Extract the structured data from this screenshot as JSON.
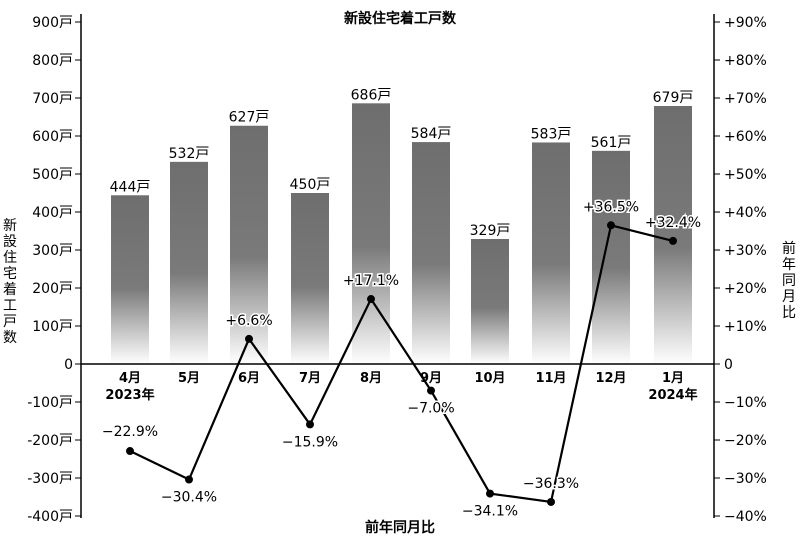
{
  "chart_data": {
    "type": "bar",
    "title": "新設住宅着工戸数",
    "xlabel": "前年同月比",
    "ylabel": "新設住宅着工戸数",
    "ylabel_right": "前年同月比",
    "categories": [
      "4月",
      "5月",
      "6月",
      "7月",
      "8月",
      "9月",
      "10月",
      "11月",
      "12月",
      "1月"
    ],
    "year_labels": [
      "2023年",
      "",
      "",
      "",
      "",
      "",
      "",
      "",
      "",
      "2024年"
    ],
    "series": [
      {
        "type": "bar",
        "axis": "left",
        "values": [
          444,
          532,
          627,
          450,
          686,
          584,
          329,
          583,
          561,
          679
        ],
        "labels": [
          "444戸",
          "532戸",
          "627戸",
          "450戸",
          "686戸",
          "584戸",
          "329戸",
          "583戸",
          "561戸",
          "679戸"
        ]
      },
      {
        "type": "line",
        "axis": "right",
        "values": [
          -22.9,
          -30.4,
          6.6,
          -15.9,
          17.1,
          -7.0,
          -34.1,
          -36.3,
          36.5,
          32.4
        ],
        "labels": [
          "−22.9%",
          "−30.4%",
          "+6.6%",
          "−15.9%",
          "+17.1%",
          "−7.0%",
          "−34.1%",
          "−36.3%",
          "+36.5%",
          "+32.4%"
        ]
      }
    ],
    "ylim_left": [
      -400,
      900
    ],
    "ylim_right": [
      -40,
      90
    ],
    "left_ticks": [
      "-400戸",
      "-300戸",
      "-200戸",
      "-100戸",
      "0",
      "100戸",
      "200戸",
      "300戸",
      "400戸",
      "500戸",
      "600戸",
      "700戸",
      "800戸",
      "900戸"
    ],
    "right_ticks": [
      "−40%",
      "−30%",
      "−20%",
      "−10%",
      "0",
      "+10%",
      "+20%",
      "+30%",
      "+40%",
      "+50%",
      "+60%",
      "+70%",
      "+80%",
      "+90%"
    ],
    "colors": {
      "bar_top": "#6e6e6e",
      "bar_bottom": "#ffffff",
      "line": "#000000",
      "axis": "#000000"
    },
    "grid": false
  }
}
